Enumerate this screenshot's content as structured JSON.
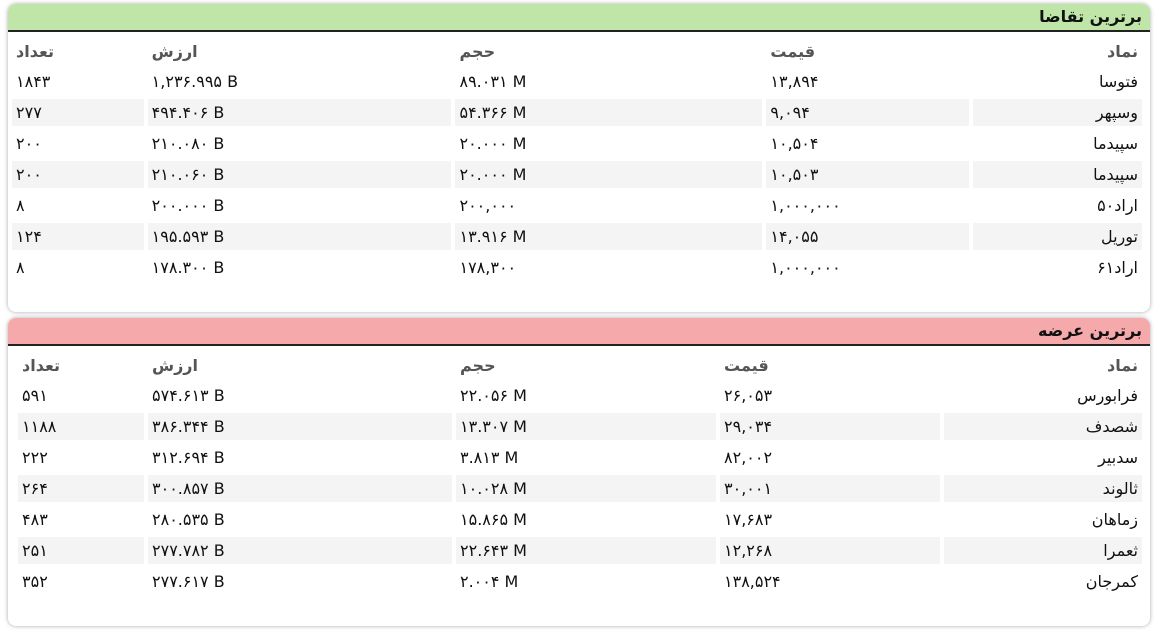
{
  "demand": {
    "title": "برترین تقاضا",
    "header_color": "#bfe6a8",
    "columns": {
      "symbol": "نماد",
      "price": "قیمت",
      "volume": "حجم",
      "value": "ارزش",
      "count": "تعداد"
    },
    "rows": [
      {
        "symbol": "فتوسا",
        "price": "۱۳,۸۹۴",
        "volume": "۸۹.۰۳۱ M",
        "value": "۱,۲۳۶.۹۹۵ B",
        "count": "۱۸۴۳"
      },
      {
        "symbol": "وسپهر",
        "price": "۹,۰۹۴",
        "volume": "۵۴.۳۶۶ M",
        "value": "۴۹۴.۴۰۶ B",
        "count": "۲۷۷"
      },
      {
        "symbol": "سپیدما",
        "price": "۱۰,۵۰۴",
        "volume": "۲۰.۰۰۰ M",
        "value": "۲۱۰.۰۸۰ B",
        "count": "۲۰۰"
      },
      {
        "symbol": "سپیدما",
        "price": "۱۰,۵۰۳",
        "volume": "۲۰.۰۰۰ M",
        "value": "۲۱۰.۰۶۰ B",
        "count": "۲۰۰"
      },
      {
        "symbol": "اراد۵۰",
        "price": "۱,۰۰۰,۰۰۰",
        "volume": "۲۰۰,۰۰۰",
        "value": "۲۰۰.۰۰۰ B",
        "count": "۸"
      },
      {
        "symbol": "توریل",
        "price": "۱۴,۰۵۵",
        "volume": "۱۳.۹۱۶ M",
        "value": "۱۹۵.۵۹۳ B",
        "count": "۱۲۴"
      },
      {
        "symbol": "اراد۶۱",
        "price": "۱,۰۰۰,۰۰۰",
        "volume": "۱۷۸,۳۰۰",
        "value": "۱۷۸.۳۰۰ B",
        "count": "۸"
      }
    ]
  },
  "supply": {
    "title": "برترین عرضه",
    "header_color": "#f5a9ab",
    "columns": {
      "symbol": "نماد",
      "price": "قیمت",
      "volume": "حجم",
      "value": "ارزش",
      "count": "تعداد"
    },
    "rows": [
      {
        "symbol": "فرابورس",
        "price": "۲۶,۰۵۳",
        "volume": "۲۲.۰۵۶ M",
        "value": "۵۷۴.۶۱۳ B",
        "count": "۵۹۱"
      },
      {
        "symbol": "شصدف",
        "price": "۲۹,۰۳۴",
        "volume": "۱۳.۳۰۷ M",
        "value": "۳۸۶.۳۴۴ B",
        "count": "۱۱۸۸"
      },
      {
        "symbol": "سدبیر",
        "price": "۸۲,۰۰۲",
        "volume": "۳.۸۱۳ M",
        "value": "۳۱۲.۶۹۴ B",
        "count": "۲۲۲"
      },
      {
        "symbol": "ثالوند",
        "price": "۳۰,۰۰۱",
        "volume": "۱۰.۰۲۸ M",
        "value": "۳۰۰.۸۵۷ B",
        "count": "۲۶۴"
      },
      {
        "symbol": "زماهان",
        "price": "۱۷,۶۸۳",
        "volume": "۱۵.۸۶۵ M",
        "value": "۲۸۰.۵۳۵ B",
        "count": "۴۸۳"
      },
      {
        "symbol": "ثعمرا",
        "price": "۱۲,۲۶۸",
        "volume": "۲۲.۶۴۳ M",
        "value": "۲۷۷.۷۸۲ B",
        "count": "۲۵۱"
      },
      {
        "symbol": "کمرجان",
        "price": "۱۳۸,۵۲۴",
        "volume": "۲.۰۰۴ M",
        "value": "۲۷۷.۶۱۷ B",
        "count": "۳۵۲"
      }
    ]
  }
}
